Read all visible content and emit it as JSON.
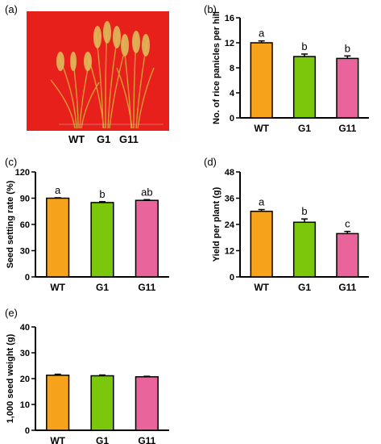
{
  "panels": {
    "a": "(a)",
    "b": "(b)",
    "c": "(c)",
    "d": "(d)",
    "e": "(e)"
  },
  "photo_labels": [
    "WT",
    "G1",
    "G11"
  ],
  "colors": {
    "WT": "#f7a21b",
    "G1": "#7ac70c",
    "G11": "#e8649a",
    "photo_bg": "#e8201c"
  },
  "chart_data": [
    {
      "id": "b",
      "type": "bar",
      "categories": [
        "WT",
        "G1",
        "G11"
      ],
      "values": [
        12.0,
        9.8,
        9.5
      ],
      "errors": [
        0.3,
        0.4,
        0.4
      ],
      "significance": [
        "a",
        "b",
        "b"
      ],
      "ylabel": "No. of rice panicles per hill",
      "ylim": [
        0,
        16
      ],
      "yticks": [
        0,
        4,
        8,
        12,
        16
      ]
    },
    {
      "id": "c",
      "type": "bar",
      "categories": [
        "WT",
        "G1",
        "G11"
      ],
      "values": [
        90,
        85,
        87.5
      ],
      "errors": [
        0.5,
        1.0,
        0.8
      ],
      "significance": [
        "a",
        "b",
        "ab"
      ],
      "ylabel": "Seed setting rate (%)",
      "ylim": [
        0,
        120
      ],
      "yticks": [
        0,
        30,
        60,
        90,
        120
      ]
    },
    {
      "id": "d",
      "type": "bar",
      "categories": [
        "WT",
        "G1",
        "G11"
      ],
      "values": [
        30,
        25,
        19.8
      ],
      "errors": [
        0.8,
        1.5,
        1.0
      ],
      "significance": [
        "a",
        "b",
        "c"
      ],
      "ylabel": "Yield per plant (g)",
      "ylim": [
        0,
        48
      ],
      "yticks": [
        0,
        12,
        24,
        36,
        48
      ]
    },
    {
      "id": "e",
      "type": "bar",
      "categories": [
        "WT",
        "G1",
        "G11"
      ],
      "values": [
        21.3,
        21.1,
        20.7
      ],
      "errors": [
        0.4,
        0.3,
        0.2
      ],
      "significance": [
        "",
        "",
        ""
      ],
      "ylabel": "1,000 seed weight (g)",
      "ylim": [
        0,
        40
      ],
      "yticks": [
        0,
        10,
        20,
        30,
        40
      ]
    }
  ]
}
